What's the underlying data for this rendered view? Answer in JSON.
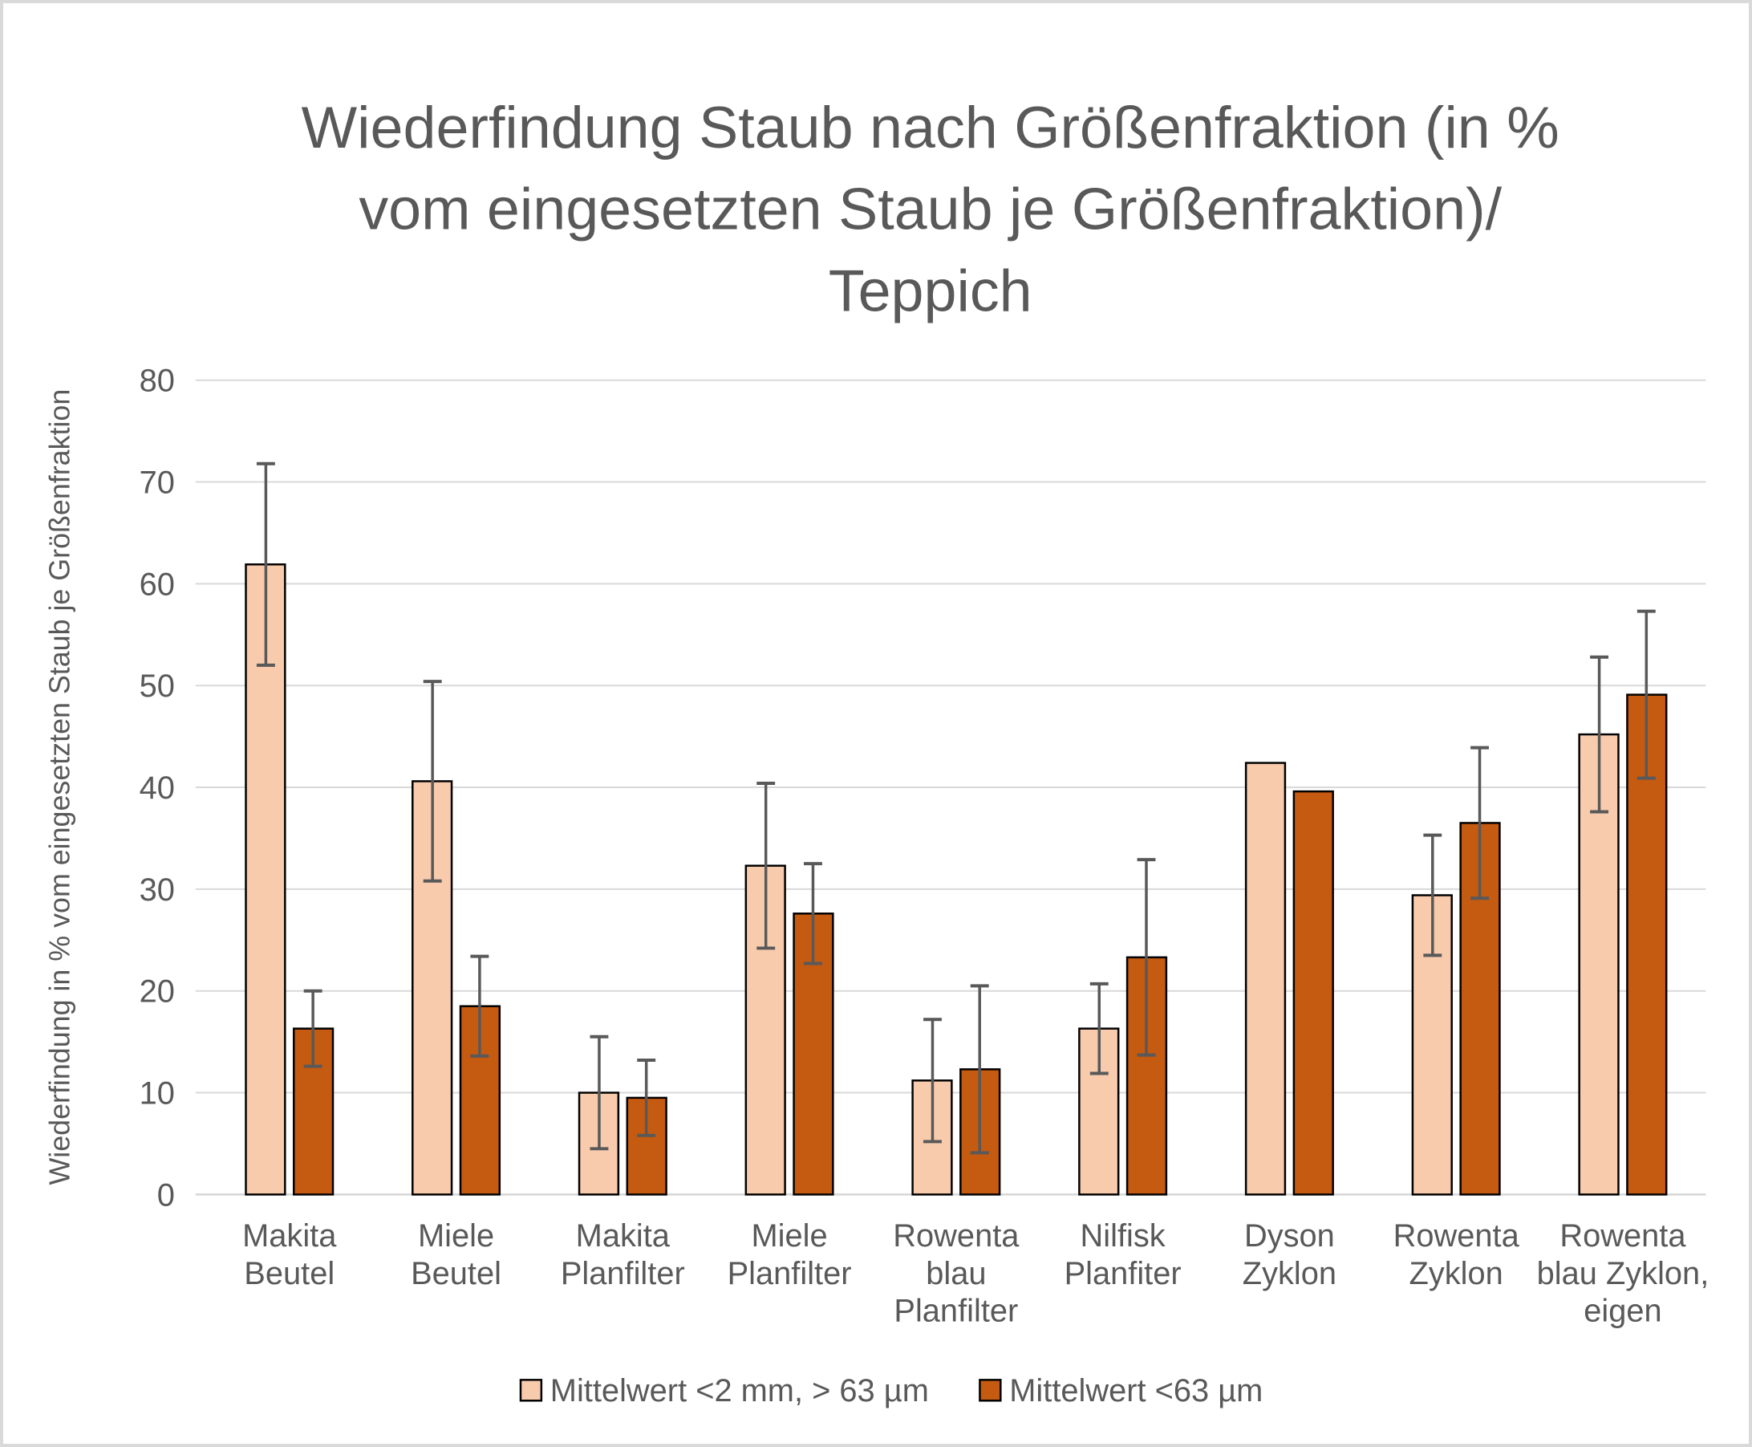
{
  "window": {
    "background": "#FFFFFF",
    "frame_border_color": "#D9D9D9"
  },
  "title": {
    "text": "Wiederfindung Staub nach Größenfraktion (in % vom eingesetzten Staub je Größenfraktion)/ Teppich",
    "lines": [
      "Wiederfindung Staub nach Größenfraktion (in %",
      "vom eingesetzten Staub je Größenfraktion)/",
      "Teppich"
    ],
    "color": "#595959"
  },
  "y_axis": {
    "label": "Wiederfindung in % vom eingesetzten Staub je Größenfraktion",
    "min": 0,
    "max": 80,
    "step": 10,
    "tick_labels": [
      "0",
      "10",
      "20",
      "30",
      "40",
      "50",
      "60",
      "70",
      "80"
    ],
    "text_color": "#595959"
  },
  "legend": {
    "items": [
      {
        "label": "Mittelwert <2 mm, > 63 µm",
        "color": "#F8CBAD"
      },
      {
        "label": "Mittelwert <63 µm",
        "color": "#C55A11"
      }
    ]
  },
  "styles": {
    "gridline_color": "#D9D9D9",
    "axis_line_color": "#D6D6D6",
    "error_bar_color": "#595959",
    "bar_border_color": "#000000",
    "text_color": "#595959"
  },
  "chart_data": {
    "type": "bar",
    "title": "Wiederfindung Staub nach Größenfraktion (in % vom eingesetzten Staub je Größenfraktion)/ Teppich",
    "xlabel": "",
    "ylabel": "Wiederfindung in % vom eingesetzten Staub je Größenfraktion",
    "ylim": [
      0,
      80
    ],
    "grid": true,
    "legend_position": "bottom",
    "error_bars": true,
    "categories": [
      "Makita Beutel",
      "Miele Beutel",
      "Makita Planfilter",
      "Miele Planfilter",
      "Rowenta blau Planfilter",
      "Nilfisk Planfiter",
      "Dyson Zyklon",
      "Rowenta Zyklon",
      "Rowenta blau Zyklon, eigen"
    ],
    "category_label_lines": [
      [
        "Makita",
        "Beutel"
      ],
      [
        "Miele",
        "Beutel"
      ],
      [
        "Makita",
        "Planfilter"
      ],
      [
        "Miele",
        "Planfilter"
      ],
      [
        "Rowenta",
        "blau",
        "Planfilter"
      ],
      [
        "Nilfisk",
        "Planfiter"
      ],
      [
        "Dyson",
        "Zyklon"
      ],
      [
        "Rowenta",
        "Zyklon"
      ],
      [
        "Rowenta",
        "blau Zyklon,",
        "eigen"
      ]
    ],
    "series": [
      {
        "name": "Mittelwert <2 mm, > 63 µm",
        "color": "#F8CBAD",
        "values": [
          61.9,
          40.6,
          10.0,
          32.3,
          11.2,
          16.3,
          42.4,
          29.4,
          45.2
        ],
        "errors": [
          9.9,
          9.8,
          5.5,
          8.1,
          6.0,
          4.4,
          null,
          5.9,
          7.6
        ]
      },
      {
        "name": "Mittelwert <63 µm",
        "color": "#C55A11",
        "values": [
          16.3,
          18.5,
          9.5,
          27.6,
          12.3,
          23.3,
          39.6,
          36.5,
          49.1
        ],
        "errors": [
          3.7,
          4.9,
          3.7,
          4.9,
          8.2,
          9.6,
          null,
          7.4,
          8.2
        ]
      }
    ]
  }
}
